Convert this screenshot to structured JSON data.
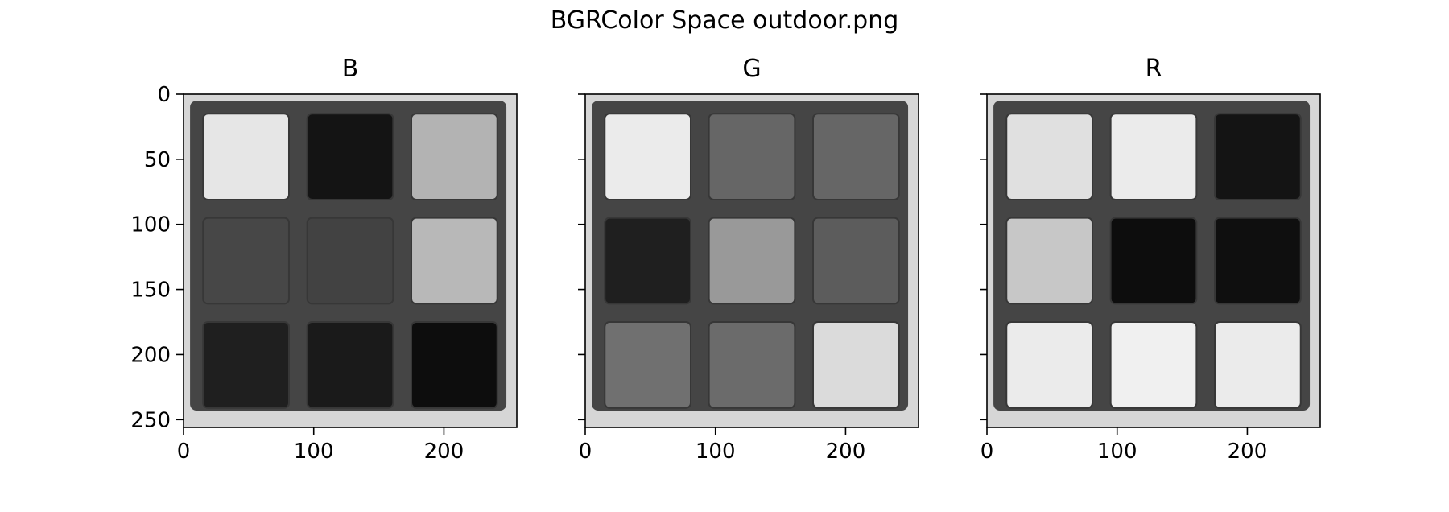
{
  "suptitle": "BGRColor Space outdoor.png",
  "colors": {
    "axis": "#000000",
    "frame": "#d8d8d8",
    "cube": "#404040"
  },
  "chart_data": [
    {
      "type": "heatmap",
      "title": "B",
      "xlabel": "",
      "ylabel": "",
      "x_ticks": [
        0,
        100,
        200
      ],
      "y_ticks": [
        0,
        50,
        100,
        150,
        200,
        250
      ],
      "show_y_tick_labels": true,
      "xlim": [
        0,
        256
      ],
      "ylim": [
        256,
        0
      ],
      "colormap": "gray",
      "background_level": 0.84,
      "border_level": 0.27,
      "tiles": [
        [
          0.9,
          0.08,
          0.7
        ],
        [
          0.28,
          0.26,
          0.72
        ],
        [
          0.12,
          0.1,
          0.05
        ]
      ]
    },
    {
      "type": "heatmap",
      "title": "G",
      "xlabel": "",
      "ylabel": "",
      "x_ticks": [
        0,
        100,
        200
      ],
      "y_ticks": [
        0,
        50,
        100,
        150,
        200,
        250
      ],
      "show_y_tick_labels": false,
      "xlim": [
        0,
        256
      ],
      "ylim": [
        256,
        0
      ],
      "colormap": "gray",
      "background_level": 0.84,
      "border_level": 0.27,
      "tiles": [
        [
          0.92,
          0.4,
          0.4
        ],
        [
          0.12,
          0.6,
          0.36
        ],
        [
          0.44,
          0.42,
          0.86
        ]
      ]
    },
    {
      "type": "heatmap",
      "title": "R",
      "xlabel": "",
      "ylabel": "",
      "x_ticks": [
        0,
        100,
        200
      ],
      "y_ticks": [
        0,
        50,
        100,
        150,
        200,
        250
      ],
      "show_y_tick_labels": false,
      "xlim": [
        0,
        256
      ],
      "ylim": [
        256,
        0
      ],
      "colormap": "gray",
      "background_level": 0.84,
      "border_level": 0.27,
      "tiles": [
        [
          0.88,
          0.92,
          0.08
        ],
        [
          0.78,
          0.05,
          0.06
        ],
        [
          0.92,
          0.94,
          0.92
        ]
      ]
    }
  ]
}
